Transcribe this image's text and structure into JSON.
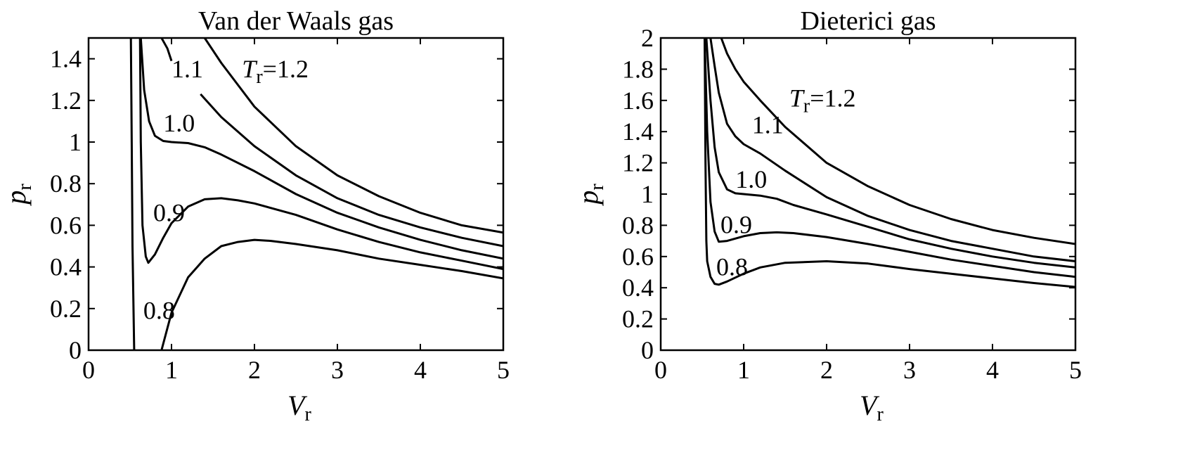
{
  "chart_data": [
    {
      "type": "line",
      "title": "Van der Waals gas",
      "xlabel": {
        "main": "V",
        "sub": "r"
      },
      "ylabel": {
        "main": "p",
        "sub": "r"
      },
      "xlim": [
        0,
        5
      ],
      "ylim": [
        0,
        1.5
      ],
      "xticks": [
        "0",
        "1",
        "2",
        "3",
        "4",
        "5"
      ],
      "yticks": [
        "0",
        "0.2",
        "0.4",
        "0.6",
        "0.8",
        "1",
        "1.2",
        "1.4"
      ],
      "grid": false,
      "legend": "none",
      "series": [
        {
          "name": "0.8",
          "points": [
            [
              0.55,
              0
            ],
            [
              0.53,
              0.5
            ],
            [
              0.52,
              1.0
            ],
            [
              0.51,
              1.5
            ]
          ]
        },
        {
          "name": "0.8",
          "points": [
            [
              0.88,
              0
            ],
            [
              1.0,
              0.18
            ],
            [
              1.2,
              0.35
            ],
            [
              1.4,
              0.44
            ],
            [
              1.6,
              0.5
            ],
            [
              1.8,
              0.52
            ],
            [
              2.0,
              0.53
            ],
            [
              2.2,
              0.525
            ],
            [
              2.5,
              0.51
            ],
            [
              3.0,
              0.48
            ],
            [
              3.5,
              0.44
            ],
            [
              4.0,
              0.41
            ],
            [
              4.5,
              0.38
            ],
            [
              5.0,
              0.345
            ]
          ]
        },
        {
          "name": "0.9",
          "points": [
            [
              0.62,
              1.5
            ],
            [
              0.63,
              1.0
            ],
            [
              0.65,
              0.6
            ],
            [
              0.69,
              0.45
            ],
            [
              0.72,
              0.42
            ],
            [
              0.8,
              0.46
            ],
            [
              0.9,
              0.54
            ],
            [
              1.0,
              0.61
            ],
            [
              1.2,
              0.69
            ],
            [
              1.4,
              0.725
            ],
            [
              1.6,
              0.73
            ],
            [
              1.8,
              0.72
            ],
            [
              2.0,
              0.705
            ],
            [
              2.5,
              0.65
            ],
            [
              3.0,
              0.58
            ],
            [
              3.5,
              0.52
            ],
            [
              4.0,
              0.47
            ],
            [
              4.5,
              0.43
            ],
            [
              5.0,
              0.39
            ]
          ]
        },
        {
          "name": "1.0",
          "points": [
            [
              0.63,
              1.5
            ],
            [
              0.67,
              1.25
            ],
            [
              0.73,
              1.1
            ],
            [
              0.8,
              1.03
            ],
            [
              0.9,
              1.005
            ],
            [
              1.0,
              1.0
            ],
            [
              1.2,
              0.995
            ],
            [
              1.4,
              0.975
            ],
            [
              1.6,
              0.94
            ],
            [
              2.0,
              0.86
            ],
            [
              2.5,
              0.75
            ],
            [
              3.0,
              0.66
            ],
            [
              3.5,
              0.59
            ],
            [
              4.0,
              0.53
            ],
            [
              4.5,
              0.48
            ],
            [
              5.0,
              0.44
            ]
          ]
        },
        {
          "name": "1.1",
          "points": [
            [
              1.35,
              1.23
            ],
            [
              1.6,
              1.12
            ],
            [
              2.0,
              0.98
            ],
            [
              2.5,
              0.84
            ],
            [
              3.0,
              0.73
            ],
            [
              3.5,
              0.65
            ],
            [
              4.0,
              0.59
            ],
            [
              4.5,
              0.54
            ],
            [
              5.0,
              0.5
            ]
          ]
        },
        {
          "name": "1.1",
          "points": [
            [
              0.88,
              1.5
            ],
            [
              0.95,
              1.45
            ],
            [
              1.0,
              1.39
            ]
          ]
        },
        {
          "name": "T_r = 1.2",
          "points": [
            [
              1.4,
              1.5
            ],
            [
              1.6,
              1.38
            ],
            [
              2.0,
              1.17
            ],
            [
              2.5,
              0.98
            ],
            [
              3.0,
              0.84
            ],
            [
              3.5,
              0.74
            ],
            [
              4.0,
              0.66
            ],
            [
              4.5,
              0.6
            ],
            [
              5.0,
              0.565
            ]
          ]
        }
      ],
      "annotations": [
        {
          "text": "1.1",
          "x": 1.0,
          "y": 1.31
        },
        {
          "text": "1.0",
          "x": 0.9,
          "y": 1.05
        },
        {
          "text": "0.9",
          "x": 0.78,
          "y": 0.62
        },
        {
          "text": "0.8",
          "x": 0.66,
          "y": 0.15
        },
        {
          "text": "T",
          "sub": "r",
          "rest": "=1.2",
          "x": 1.85,
          "y": 1.31
        }
      ]
    },
    {
      "type": "line",
      "title": "Dieterici gas",
      "xlabel": {
        "main": "V",
        "sub": "r"
      },
      "ylabel": {
        "main": "p",
        "sub": "r"
      },
      "xlim": [
        0,
        5
      ],
      "ylim": [
        0,
        2
      ],
      "xticks": [
        "0",
        "1",
        "2",
        "3",
        "4",
        "5"
      ],
      "yticks": [
        "0",
        "0.2",
        "0.4",
        "0.6",
        "0.8",
        "1",
        "1.2",
        "1.4",
        "1.6",
        "1.8",
        "2"
      ],
      "grid": false,
      "legend": "none",
      "series": [
        {
          "name": "0.8",
          "points": [
            [
              0.53,
              2.0
            ],
            [
              0.54,
              1.2
            ],
            [
              0.55,
              0.7
            ],
            [
              0.56,
              0.57
            ],
            [
              0.6,
              0.47
            ],
            [
              0.65,
              0.425
            ],
            [
              0.7,
              0.42
            ],
            [
              0.8,
              0.44
            ],
            [
              1.0,
              0.49
            ],
            [
              1.2,
              0.53
            ],
            [
              1.5,
              0.56
            ],
            [
              2.0,
              0.57
            ],
            [
              2.5,
              0.555
            ],
            [
              3.0,
              0.52
            ],
            [
              3.5,
              0.49
            ],
            [
              4.0,
              0.46
            ],
            [
              4.5,
              0.43
            ],
            [
              5.0,
              0.405
            ]
          ]
        },
        {
          "name": "0.9",
          "points": [
            [
              0.53,
              2.0
            ],
            [
              0.56,
              1.4
            ],
            [
              0.6,
              0.95
            ],
            [
              0.65,
              0.76
            ],
            [
              0.7,
              0.695
            ],
            [
              0.8,
              0.7
            ],
            [
              1.0,
              0.73
            ],
            [
              1.2,
              0.75
            ],
            [
              1.4,
              0.755
            ],
            [
              1.6,
              0.75
            ],
            [
              2.0,
              0.725
            ],
            [
              2.5,
              0.68
            ],
            [
              3.0,
              0.63
            ],
            [
              3.5,
              0.58
            ],
            [
              4.0,
              0.54
            ],
            [
              4.5,
              0.5
            ],
            [
              5.0,
              0.47
            ]
          ]
        },
        {
          "name": "1.0",
          "points": [
            [
              0.55,
              2.0
            ],
            [
              0.6,
              1.6
            ],
            [
              0.65,
              1.3
            ],
            [
              0.7,
              1.14
            ],
            [
              0.8,
              1.03
            ],
            [
              0.9,
              1.005
            ],
            [
              1.0,
              1.0
            ],
            [
              1.2,
              0.99
            ],
            [
              1.4,
              0.97
            ],
            [
              1.6,
              0.93
            ],
            [
              2.0,
              0.87
            ],
            [
              2.5,
              0.79
            ],
            [
              3.0,
              0.71
            ],
            [
              3.5,
              0.65
            ],
            [
              4.0,
              0.6
            ],
            [
              4.5,
              0.56
            ],
            [
              5.0,
              0.53
            ]
          ]
        },
        {
          "name": "1.1",
          "points": [
            [
              0.6,
              2.0
            ],
            [
              0.65,
              1.82
            ],
            [
              0.7,
              1.65
            ],
            [
              0.8,
              1.45
            ],
            [
              0.9,
              1.37
            ],
            [
              1.0,
              1.32
            ],
            [
              1.2,
              1.26
            ],
            [
              1.5,
              1.15
            ],
            [
              2.0,
              0.98
            ],
            [
              2.5,
              0.86
            ],
            [
              3.0,
              0.77
            ],
            [
              3.5,
              0.7
            ],
            [
              4.0,
              0.65
            ],
            [
              4.5,
              0.6
            ],
            [
              5.0,
              0.57
            ]
          ]
        },
        {
          "name": "T_r = 1.2",
          "points": [
            [
              0.73,
              2.0
            ],
            [
              0.8,
              1.9
            ],
            [
              0.9,
              1.8
            ],
            [
              1.0,
              1.72
            ],
            [
              1.2,
              1.6
            ],
            [
              1.5,
              1.43
            ],
            [
              2.0,
              1.2
            ],
            [
              2.5,
              1.05
            ],
            [
              3.0,
              0.93
            ],
            [
              3.5,
              0.84
            ],
            [
              4.0,
              0.77
            ],
            [
              4.5,
              0.72
            ],
            [
              5.0,
              0.68
            ]
          ]
        }
      ],
      "annotations": [
        {
          "text": "1.1",
          "x": 1.1,
          "y": 1.39
        },
        {
          "text": "1.0",
          "x": 0.9,
          "y": 1.04
        },
        {
          "text": "0.9",
          "x": 0.72,
          "y": 0.75
        },
        {
          "text": "0.8",
          "x": 0.67,
          "y": 0.48
        },
        {
          "text": "T",
          "sub": "r",
          "rest": "=1.2",
          "x": 1.55,
          "y": 1.56
        }
      ]
    }
  ]
}
